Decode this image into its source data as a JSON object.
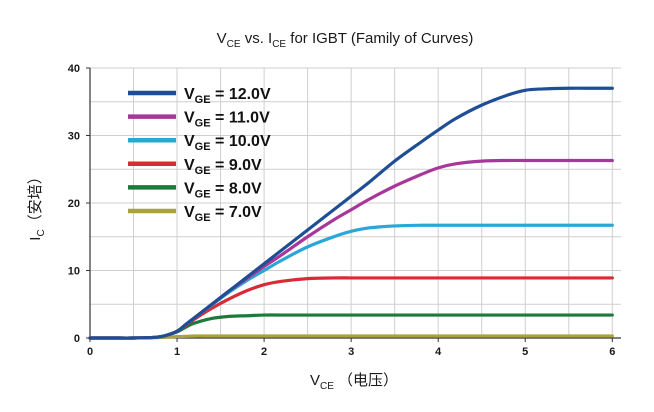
{
  "chart_data": {
    "type": "line",
    "title": {
      "v_main": "V",
      "v_sub": "CE",
      "vs": " vs. I",
      "i_sub": "CE",
      "rest": " for IGBT (Family of Curves)"
    },
    "xlabel": {
      "main": "V",
      "sub": "CE",
      "unit": "  （电压）"
    },
    "ylabel": {
      "main": "I",
      "sub": "C",
      "unit": "（安培）"
    },
    "xlim": [
      0,
      6.1
    ],
    "ylim": [
      0,
      40
    ],
    "xticks": [
      "0",
      "1",
      "2",
      "3",
      "4",
      "5",
      "6"
    ],
    "yticks": [
      "0",
      "10",
      "20",
      "30",
      "40"
    ],
    "grid": true,
    "legend_position": "top-left",
    "x": [
      0,
      0.25,
      0.5,
      0.75,
      0.85,
      1.0,
      1.1,
      1.2,
      1.4,
      1.6,
      1.8,
      2.0,
      2.2,
      2.5,
      2.8,
      3.0,
      3.2,
      3.5,
      3.8,
      4.0,
      4.2,
      4.5,
      4.8,
      5.0,
      5.2,
      5.5,
      5.8,
      6.0
    ],
    "series": [
      {
        "name": "12.0V",
        "label_main": "V",
        "label_sub": "GE",
        "label_rest": " = 12.0V",
        "color": "#1f4e96",
        "values": [
          0,
          0,
          0,
          0.1,
          0.3,
          1.0,
          2.0,
          3.0,
          5.0,
          7.0,
          9.0,
          11.0,
          13.0,
          16.0,
          19.0,
          21.0,
          23.0,
          26.2,
          29.0,
          30.8,
          32.5,
          34.5,
          36.0,
          36.7,
          36.9,
          37.0,
          37.0,
          37.0
        ]
      },
      {
        "name": "11.0V",
        "label_main": "V",
        "label_sub": "GE",
        "label_rest": " = 11.0V",
        "color": "#a8379a",
        "values": [
          0,
          0,
          0,
          0.1,
          0.3,
          1.0,
          2.0,
          3.0,
          5.0,
          7.0,
          8.8,
          10.6,
          12.3,
          15.0,
          17.5,
          19.0,
          20.5,
          22.5,
          24.2,
          25.2,
          25.8,
          26.2,
          26.3,
          26.3,
          26.3,
          26.3,
          26.3,
          26.3
        ]
      },
      {
        "name": "10.0V",
        "label_main": "V",
        "label_sub": "GE",
        "label_rest": " = 10.0V",
        "color": "#2aa7d6",
        "values": [
          0,
          0,
          0,
          0.1,
          0.3,
          1.0,
          2.0,
          3.0,
          4.9,
          6.8,
          8.5,
          10.0,
          11.5,
          13.5,
          15.0,
          15.8,
          16.3,
          16.6,
          16.7,
          16.7,
          16.7,
          16.7,
          16.7,
          16.7,
          16.7,
          16.7,
          16.7,
          16.7
        ]
      },
      {
        "name": "9.0V",
        "label_main": "V",
        "label_sub": "GE",
        "label_rest": " = 9.0V",
        "color": "#d92a35",
        "values": [
          0,
          0,
          0,
          0.1,
          0.3,
          1.0,
          1.9,
          2.8,
          4.4,
          5.8,
          7.0,
          7.9,
          8.4,
          8.8,
          8.9,
          8.9,
          8.9,
          8.9,
          8.9,
          8.9,
          8.9,
          8.9,
          8.9,
          8.9,
          8.9,
          8.9,
          8.9,
          8.9
        ]
      },
      {
        "name": "8.0V",
        "label_main": "V",
        "label_sub": "GE",
        "label_rest": " = 8.0V",
        "color": "#1e7a3c",
        "values": [
          0,
          0,
          0,
          0.1,
          0.3,
          0.9,
          1.6,
          2.2,
          2.9,
          3.2,
          3.3,
          3.4,
          3.4,
          3.4,
          3.4,
          3.4,
          3.4,
          3.4,
          3.4,
          3.4,
          3.4,
          3.4,
          3.4,
          3.4,
          3.4,
          3.4,
          3.4,
          3.4
        ]
      },
      {
        "name": "7.0V",
        "label_main": "V",
        "label_sub": "GE",
        "label_rest": " = 7.0V",
        "color": "#a8a33a",
        "values": [
          0,
          0,
          0,
          0.05,
          0.1,
          0.2,
          0.25,
          0.3,
          0.3,
          0.3,
          0.3,
          0.3,
          0.3,
          0.3,
          0.3,
          0.3,
          0.3,
          0.3,
          0.3,
          0.3,
          0.3,
          0.3,
          0.3,
          0.3,
          0.3,
          0.3,
          0.3,
          0.3
        ]
      }
    ]
  }
}
